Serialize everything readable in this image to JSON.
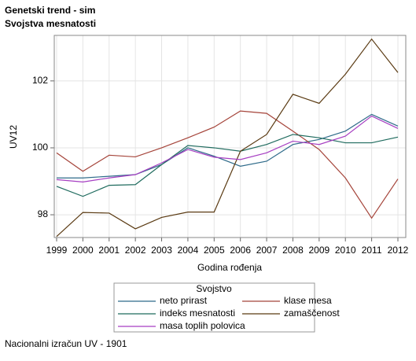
{
  "chart_data": {
    "type": "line",
    "title": "Genetski trend - sim",
    "subtitle": "Svojstva mesnatosti",
    "x_label": "Godina rođenja",
    "y_label": "UV12",
    "legend_title": "Svojstvo",
    "footnote": "Nacionalni izračun UV - 1901",
    "x": [
      1999,
      2000,
      2001,
      2002,
      2003,
      2004,
      2005,
      2006,
      2007,
      2008,
      2009,
      2010,
      2011,
      2012
    ],
    "xlim": [
      1998.91,
      2012.3
    ],
    "xticks": [
      1999,
      2000,
      2001,
      2002,
      2003,
      2004,
      2005,
      2006,
      2007,
      2008,
      2009,
      2010,
      2011,
      2012
    ],
    "ylim": [
      97.32,
      103.36
    ],
    "yticks": [
      98,
      100,
      102
    ],
    "grid": true,
    "series": [
      {
        "name": "neto prirast",
        "color": "#2f6b8a",
        "values": [
          99.1,
          99.1,
          99.15,
          99.2,
          99.5,
          100.0,
          99.75,
          99.45,
          99.6,
          100.1,
          100.25,
          100.5,
          101.0,
          100.65
        ]
      },
      {
        "name": "klase mesa",
        "color": "#a5443a",
        "values": [
          99.85,
          99.3,
          99.78,
          99.73,
          100.0,
          100.3,
          100.62,
          101.1,
          101.03,
          100.5,
          99.95,
          99.1,
          97.9,
          99.07
        ]
      },
      {
        "name": "indeks mesnatosti",
        "color": "#1f6b5e",
        "values": [
          98.85,
          98.55,
          98.88,
          98.9,
          99.5,
          100.07,
          100.0,
          99.9,
          100.1,
          100.4,
          100.3,
          100.15,
          100.15,
          100.32
        ]
      },
      {
        "name": "zamaščenost",
        "color": "#5a3a12",
        "values": [
          97.35,
          98.07,
          98.05,
          97.58,
          97.92,
          98.08,
          98.08,
          99.9,
          100.4,
          101.6,
          101.33,
          102.2,
          103.25,
          102.25
        ]
      },
      {
        "name": "masa toplih polovica",
        "color": "#a63ec2",
        "values": [
          99.05,
          98.98,
          99.1,
          99.2,
          99.55,
          99.95,
          99.72,
          99.65,
          99.85,
          100.2,
          100.1,
          100.35,
          100.95,
          100.58
        ]
      }
    ]
  }
}
